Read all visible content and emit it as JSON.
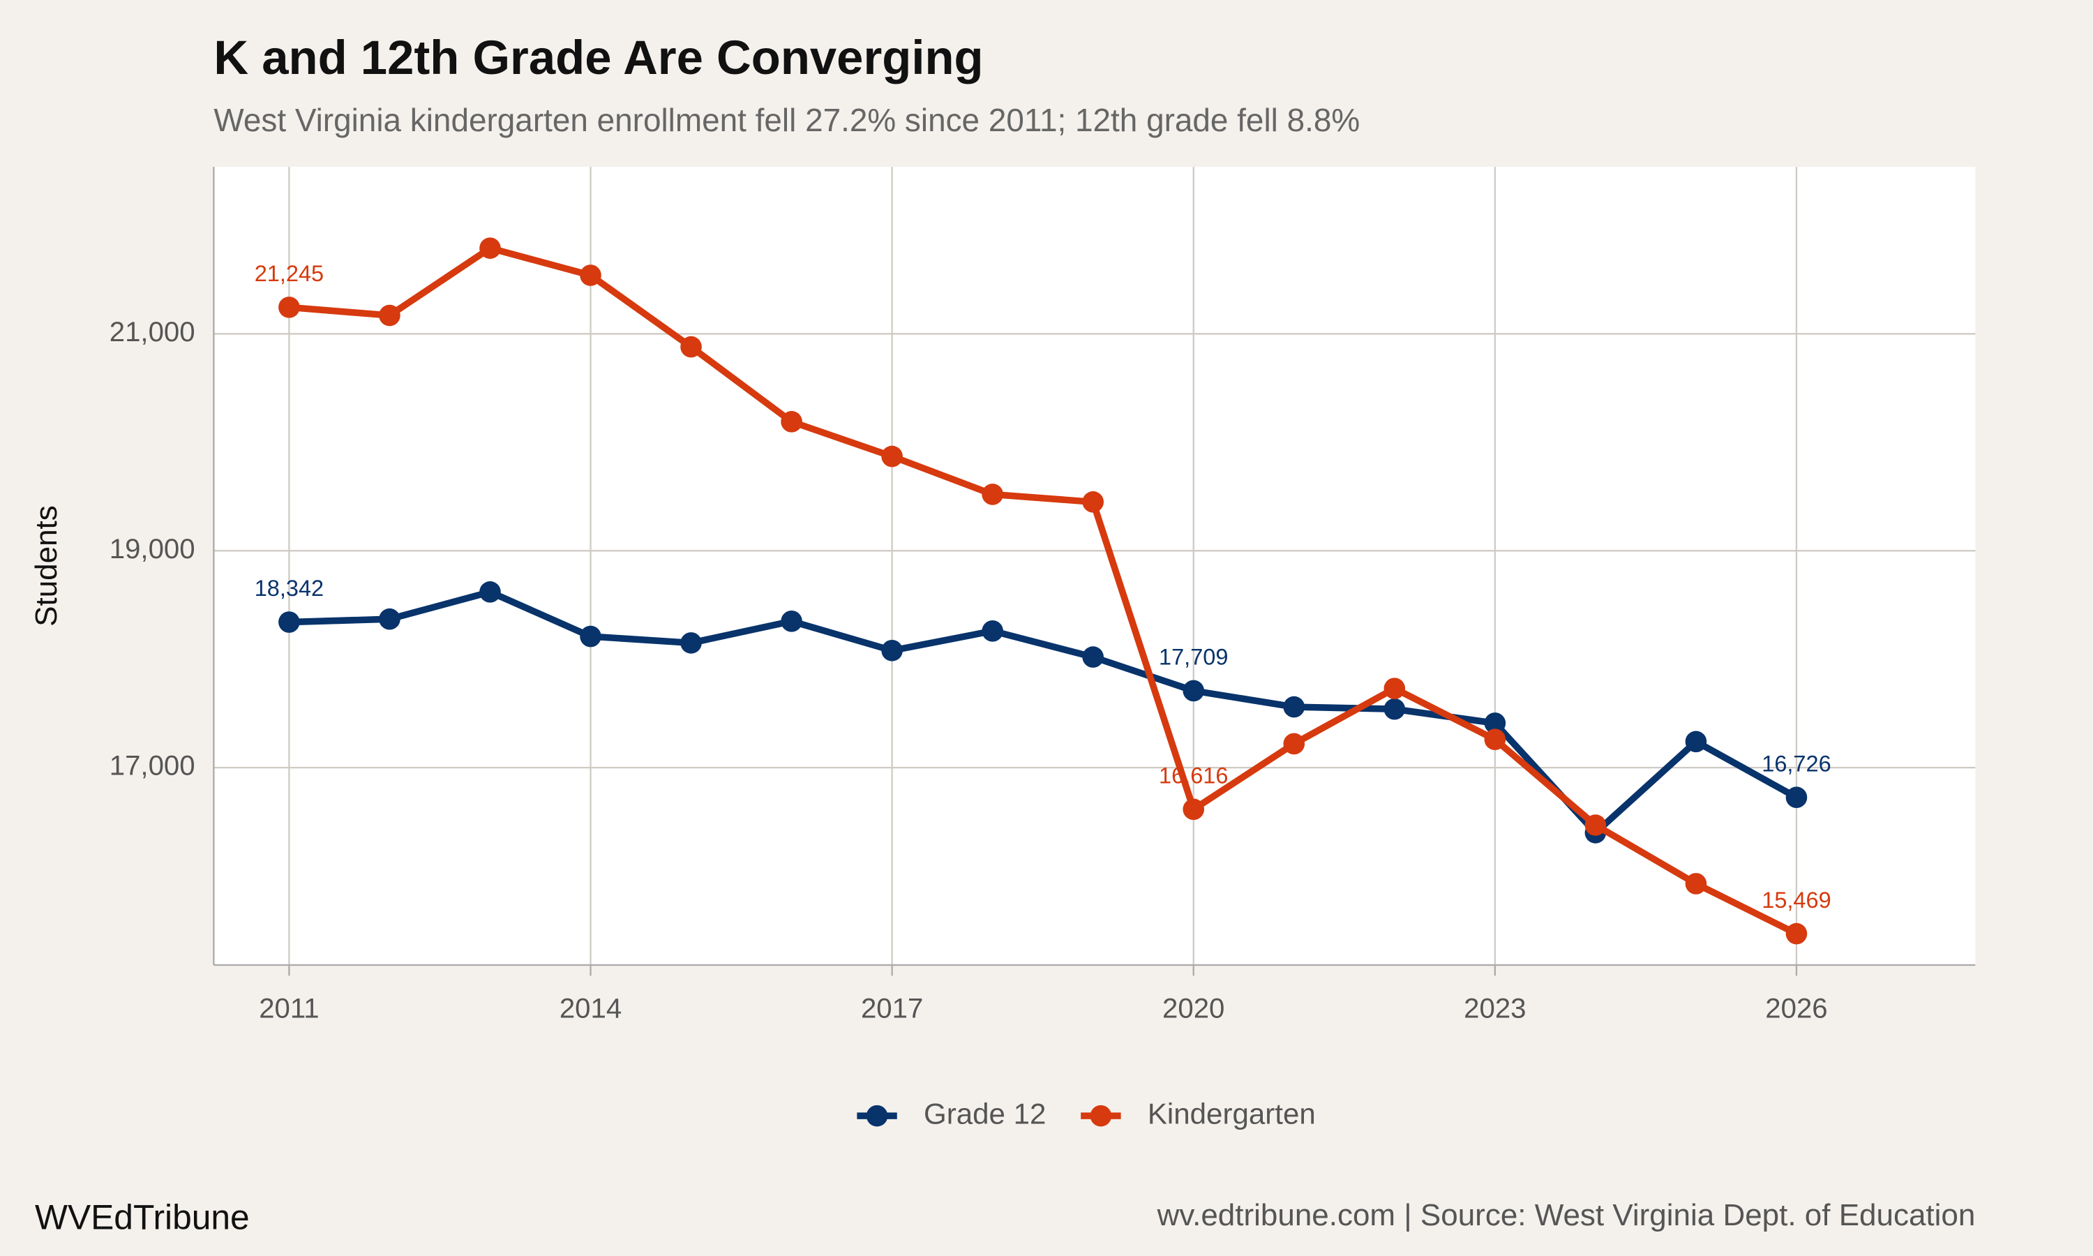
{
  "chart_data": {
    "type": "line",
    "title": "K and 12th Grade Are Converging",
    "subtitle": "West Virginia kindergarten enrollment fell 27.2% since 2011; 12th grade fell 8.8%",
    "y_label": "Students",
    "brand": "WVEdTribune",
    "source": "wv.edtribune.com | Source: West Virginia Dept. of Education",
    "x": [
      2011,
      2012,
      2013,
      2014,
      2015,
      2016,
      2017,
      2018,
      2019,
      2020,
      2021,
      2022,
      2023,
      2024,
      2025,
      2026
    ],
    "series": [
      {
        "name": "Grade 12",
        "color": "#08336b",
        "values": [
          18342,
          18370,
          18620,
          18210,
          18150,
          18350,
          18080,
          18260,
          18020,
          17709,
          17560,
          17540,
          17410,
          16400,
          17240,
          16726
        ],
        "value_labels": [
          "18,342",
          null,
          null,
          null,
          null,
          null,
          null,
          null,
          null,
          "17,709",
          null,
          null,
          null,
          null,
          null,
          "16,726"
        ]
      },
      {
        "name": "Kindergarten",
        "color": "#d63a0e",
        "values": [
          21245,
          21170,
          21790,
          21540,
          20880,
          20190,
          19870,
          19520,
          19450,
          16616,
          17220,
          17730,
          17260,
          16470,
          15930,
          15469
        ],
        "value_labels": [
          "21,245",
          null,
          null,
          null,
          null,
          null,
          null,
          null,
          null,
          "16,616",
          null,
          null,
          null,
          null,
          null,
          "15,469"
        ]
      }
    ],
    "xlim": [
      2010.25,
      2027.78
    ],
    "xticks": [
      2011,
      2014,
      2017,
      2020,
      2023,
      2026
    ],
    "ylim": [
      15180,
      22540
    ],
    "yticks": [
      {
        "value": 17000,
        "label": "17,000"
      },
      {
        "value": 19000,
        "label": "19,000"
      },
      {
        "value": 21000,
        "label": "21,000"
      }
    ],
    "grid": true,
    "legend": "bottom"
  }
}
